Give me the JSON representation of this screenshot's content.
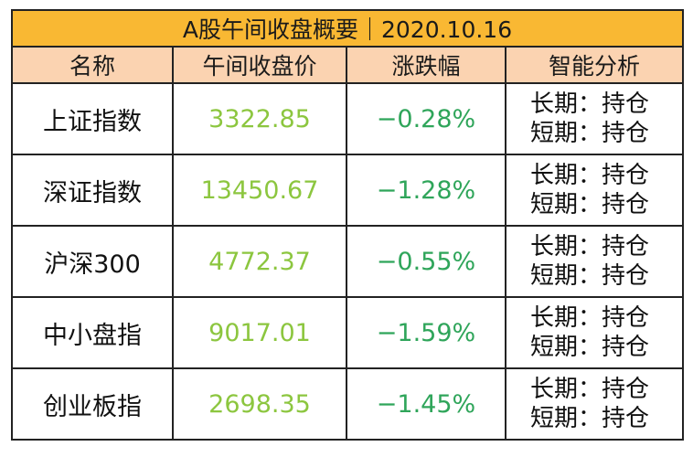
{
  "table": {
    "title": "A股午间收盘概要｜2020.10.16",
    "headers": [
      "名称",
      "午间收盘价",
      "涨跌幅",
      "智能分析"
    ],
    "rows": [
      {
        "name": "上证指数",
        "price": "3322.85",
        "change": "−0.28%",
        "long": "长期：持仓",
        "short": "短期：持仓"
      },
      {
        "name": "深证指数",
        "price": "13450.67",
        "change": "−1.28%",
        "long": "长期：持仓",
        "short": "短期：持仓"
      },
      {
        "name": "沪深300",
        "price": "4772.37",
        "change": "−0.55%",
        "long": "长期：持仓",
        "short": "短期：持仓"
      },
      {
        "name": "中小盘指",
        "price": "9017.01",
        "change": "−1.59%",
        "long": "长期：持仓",
        "short": "短期：持仓"
      },
      {
        "name": "创业板指",
        "price": "2698.35",
        "change": "−1.45%",
        "long": "长期：持仓",
        "short": "短期：持仓"
      }
    ]
  },
  "colors": {
    "title_bg": "#f9b833",
    "header_bg": "#fbd3b1",
    "price_text": "#8cc63f",
    "change_text": "#2fa55a"
  }
}
